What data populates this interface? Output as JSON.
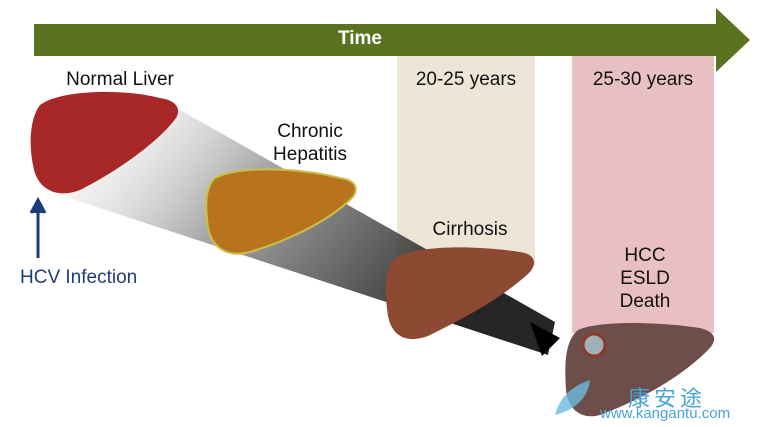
{
  "timeline": {
    "label": "Time",
    "color": "#5b7320"
  },
  "periods": [
    {
      "label": "20-25 years",
      "color": "#ede6d6"
    },
    {
      "label": "25-30 years",
      "color": "#e9c0c2"
    }
  ],
  "stages": {
    "normal": "Normal Liver",
    "chronic": [
      "Chronic",
      "Hepatitis"
    ],
    "cirrhosis": "Cirrhosis",
    "outcomes": [
      "HCC",
      "ESLD",
      "Death"
    ]
  },
  "infection": {
    "label": "HCV Infection",
    "color": "#1f3c7a"
  },
  "watermark": {
    "chinese": "康安途",
    "url": "www.kangantu.com"
  }
}
